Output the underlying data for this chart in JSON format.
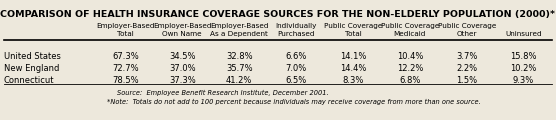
{
  "title": "COMPARISON OF HEALTH INSURANCE COVERAGE SOURCES FOR THE NON-ELDERLY POPULATION (2000)*",
  "col_headers_line1": [
    "Employer-Based",
    "Employer-Based",
    "Employer-Based",
    "Individually",
    "Public Coverage",
    "Public Coverage",
    "Public Coverage",
    ""
  ],
  "col_headers_line2": [
    "Total",
    "Own Name",
    "As a Dependent",
    "Purchased",
    "Total",
    "Medicaid",
    "Other",
    "Uninsured"
  ],
  "rows": [
    {
      "label": "United States",
      "values": [
        "67.3%",
        "34.5%",
        "32.8%",
        "6.6%",
        "14.1%",
        "10.4%",
        "3.7%",
        "15.8%"
      ]
    },
    {
      "label": "New England",
      "values": [
        "72.7%",
        "37.0%",
        "35.7%",
        "7.0%",
        "14.4%",
        "12.2%",
        "2.2%",
        "10.2%"
      ]
    },
    {
      "label": "Connecticut",
      "values": [
        "78.5%",
        "37.3%",
        "41.2%",
        "6.5%",
        "8.3%",
        "6.8%",
        "1.5%",
        "9.3%"
      ]
    }
  ],
  "source": "Source:  Employee Benefit Research Institute, December 2001.",
  "note": "*Note:  Totals do not add to 100 percent because individuals may receive coverage from more than one source.",
  "bg_color": "#ede8dc",
  "title_fontsize": 6.8,
  "header_fontsize": 5.2,
  "data_fontsize": 6.0,
  "label_fontsize": 6.0,
  "footnote_fontsize": 4.8,
  "figsize": [
    5.56,
    1.2
  ],
  "dpi": 100
}
